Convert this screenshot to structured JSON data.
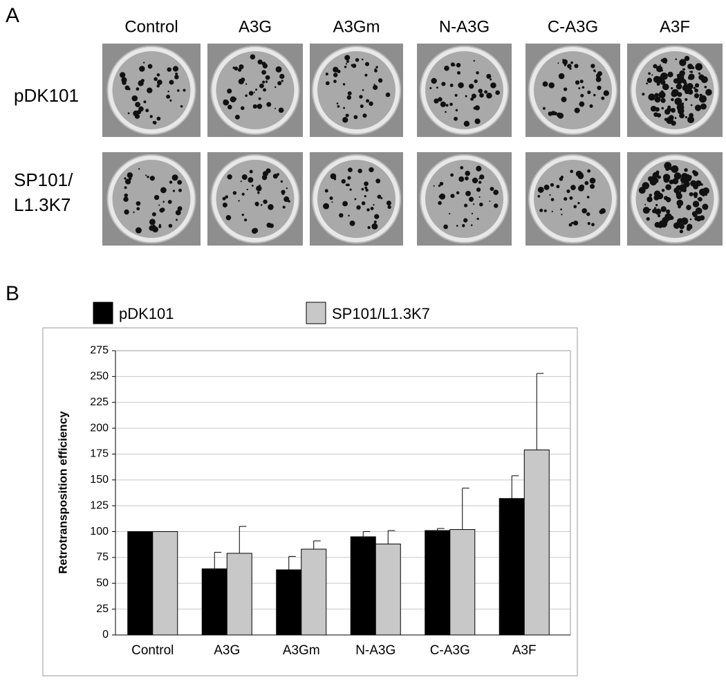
{
  "panel_a": {
    "label": "A",
    "columns": [
      "Control",
      "A3G",
      "A3Gm",
      "N-A3G",
      "C-A3G",
      "A3F"
    ],
    "rows": [
      [
        "pDK101"
      ],
      [
        "SP101/",
        "L1.3K7"
      ]
    ]
  },
  "chart_data": {
    "type": "bar",
    "panel_label": "B",
    "y_label": "Retrotransposition efficiency",
    "categories": [
      "Control",
      "A3G",
      "A3Gm",
      "N-A3G",
      "C-A3G",
      "A3F"
    ],
    "series": [
      {
        "name": "pDK101",
        "color": "#000000",
        "values": [
          100,
          64,
          63,
          95,
          101,
          132
        ],
        "errors": [
          null,
          16,
          13,
          5,
          2,
          22
        ]
      },
      {
        "name": "SP101/L1.3K7",
        "color": "#c8c8c8",
        "values": [
          100,
          79,
          83,
          88,
          102,
          179
        ],
        "errors": [
          null,
          26,
          8,
          13,
          40,
          74
        ]
      }
    ],
    "ylim": [
      0,
      275
    ],
    "yticks": [
      0,
      25,
      50,
      75,
      100,
      125,
      150,
      175,
      200,
      225,
      250,
      275
    ],
    "grid": true
  }
}
